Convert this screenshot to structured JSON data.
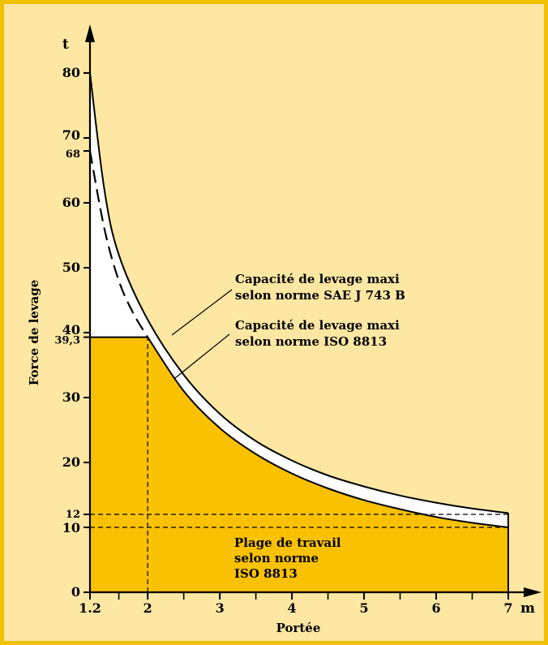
{
  "chart_data": {
    "type": "area",
    "xlabel": "Portée",
    "ylabel": "Force de levage",
    "x_unit": "m",
    "y_unit": "t",
    "xlim": [
      1.2,
      7.0
    ],
    "ylim": [
      0,
      80
    ],
    "x_ticks": [
      {
        "value": 1.2,
        "label": "1.2"
      },
      {
        "value": 2,
        "label": "2"
      },
      {
        "value": 3,
        "label": "3"
      },
      {
        "value": 4,
        "label": "4"
      },
      {
        "value": 5,
        "label": "5"
      },
      {
        "value": 6,
        "label": "6"
      },
      {
        "value": 7,
        "label": "7"
      }
    ],
    "x_minor_ticks": [
      1.6,
      2.5,
      3.5,
      4.5,
      5.5,
      6.5
    ],
    "y_ticks": [
      {
        "value": 0,
        "label": "0"
      },
      {
        "value": 10,
        "label": "10"
      },
      {
        "value": 12,
        "label": "12"
      },
      {
        "value": 20,
        "label": "20"
      },
      {
        "value": 30,
        "label": "30"
      },
      {
        "value": 39.3,
        "label": "39,3"
      },
      {
        "value": 40,
        "label": "40"
      },
      {
        "value": 50,
        "label": "50"
      },
      {
        "value": 60,
        "label": "60"
      },
      {
        "value": 68,
        "label": "68"
      },
      {
        "value": 70,
        "label": "70"
      }
    ],
    "y_top_tick": {
      "value": 80,
      "label": "80"
    },
    "series": [
      {
        "key": "sae",
        "x": [
          1.2,
          1.4,
          1.6,
          2,
          2.5,
          3,
          3.5,
          4,
          4.5,
          5,
          5.5,
          6,
          6.5,
          7
        ],
        "y": [
          80,
          62,
          52,
          42,
          33.5,
          27.5,
          23.3,
          20.3,
          18,
          16.3,
          14.9,
          13.8,
          12.9,
          12.2
        ]
      },
      {
        "key": "iso",
        "x": [
          2,
          2.5,
          3,
          3.5,
          4,
          4.5,
          5,
          5.5,
          6,
          6.5,
          7
        ],
        "y": [
          39.3,
          31,
          25.3,
          21.3,
          18.3,
          16,
          14.2,
          12.8,
          11.6,
          10.7,
          10
        ]
      },
      {
        "key": "iso_extension",
        "x": [
          1.2,
          1.4,
          1.6,
          1.8,
          2
        ],
        "y": [
          68,
          56,
          48,
          43,
          39.3
        ]
      }
    ],
    "annotations": [
      {
        "key": "sae",
        "lines": [
          "Capacité de levage maxi",
          "selon norme SAE J 743 B"
        ]
      },
      {
        "key": "iso",
        "lines": [
          "Capacité de levage maxi",
          "selon norme ISO 8813"
        ]
      },
      {
        "key": "working_range",
        "lines": [
          "Plage de travail",
          "selon norme",
          "ISO 8813"
        ]
      }
    ],
    "reference_lines": [
      {
        "type": "vertical",
        "x": 2
      },
      {
        "type": "horizontal",
        "y": 12
      },
      {
        "type": "horizontal",
        "y": 10
      }
    ],
    "colors": {
      "frame": "#f2c100",
      "background": "#fde7a3",
      "working_area": "#f9c100",
      "band": "#ffffff",
      "line": "#000000"
    }
  }
}
